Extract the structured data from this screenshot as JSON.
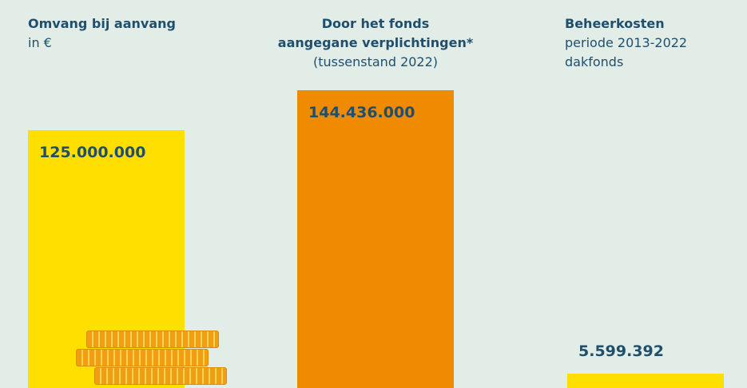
{
  "colors": {
    "background": "#e3ede8",
    "yellow": "#ffdf00",
    "orange": "#f08a00",
    "text": "#1f4f6c"
  },
  "icons": [
    "coins-icon"
  ],
  "chart_data": {
    "type": "bar",
    "categories": [
      "Omvang bij aanvang in €",
      "Door het fonds aangegane verplichtingen* (tussenstand 2022)",
      "Beheerkosten periode 2013-2022 dakfonds"
    ],
    "values": [
      125000000,
      144436000,
      5599392
    ],
    "value_labels": [
      "125.000.000",
      "144.436.000",
      "5.599.392"
    ],
    "headers": [
      {
        "title": "Omvang bij aanvang",
        "subtitle": "in €",
        "extra": ""
      },
      {
        "title": "Door het fonds",
        "title2": "aangegane verplichtingen*",
        "subtitle": "(tussenstand 2022)"
      },
      {
        "title": "Beheerkosten",
        "subtitle": "periode 2013-2022",
        "extra": "dakfonds"
      }
    ],
    "bar_colors": [
      "#ffdf00",
      "#f08a00",
      "#ffdf00"
    ],
    "ylim": [
      0,
      144436000
    ],
    "grid": false,
    "legend": "none"
  }
}
